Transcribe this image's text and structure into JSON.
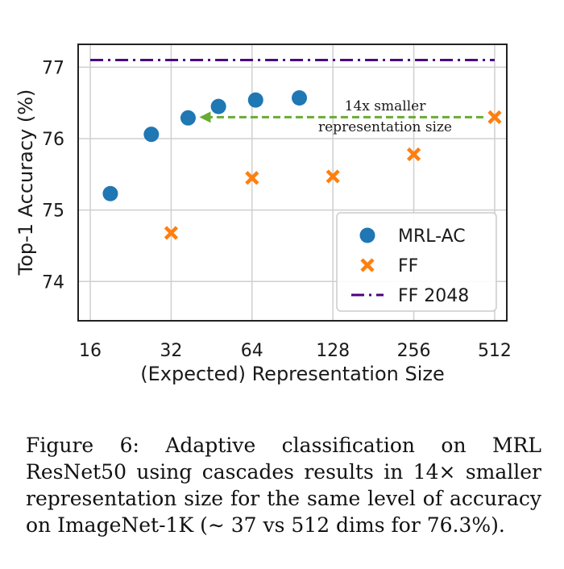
{
  "chart_data": {
    "type": "scatter",
    "xlabel": "(Expected) Representation Size",
    "ylabel": "Top-1 Accuracy (%)",
    "x_scale": "log2",
    "xlim": [
      16,
      512
    ],
    "ylim": [
      73.45,
      77.32
    ],
    "x_ticks": [
      16,
      32,
      64,
      128,
      256,
      512
    ],
    "y_ticks": [
      74,
      75,
      76,
      77
    ],
    "grid": true,
    "legend_position": "bottom-right",
    "series": [
      {
        "name": "MRL-AC",
        "marker": "circle",
        "color": "#1f77b4",
        "points": [
          {
            "x": 19,
            "y": 75.23
          },
          {
            "x": 27,
            "y": 76.06
          },
          {
            "x": 37,
            "y": 76.29
          },
          {
            "x": 48,
            "y": 76.45
          },
          {
            "x": 66,
            "y": 76.54
          },
          {
            "x": 96,
            "y": 76.57
          }
        ]
      },
      {
        "name": "FF",
        "marker": "x",
        "color": "#ff7f0e",
        "points": [
          {
            "x": 32,
            "y": 74.68
          },
          {
            "x": 64,
            "y": 75.45
          },
          {
            "x": 128,
            "y": 75.47
          },
          {
            "x": 256,
            "y": 75.78
          },
          {
            "x": 512,
            "y": 76.3
          }
        ]
      },
      {
        "name": "FF 2048",
        "marker": "dashdot-line",
        "color": "#4b0082",
        "y": 77.1
      }
    ],
    "annotation": {
      "lines": [
        "14x smaller",
        "representation size"
      ],
      "arrow_from_x": 512,
      "arrow_to_x": 37,
      "arrow_y": 76.3,
      "color": "#6aab34"
    }
  },
  "caption": "Figure 6:  Adaptive classification on MRL ResNet50 using cascades results in 14× smaller representation size for the same level of accuracy on ImageNet-1K (∼ 37 vs 512 dims for 76.3%)."
}
